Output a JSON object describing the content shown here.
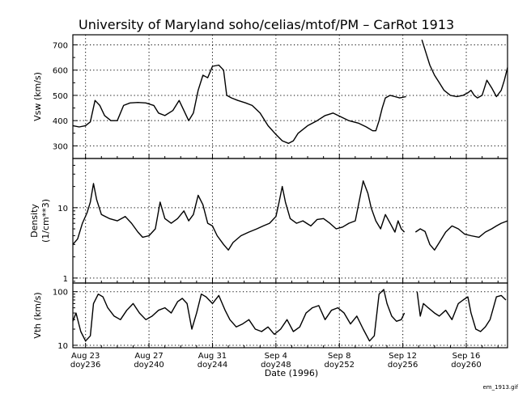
{
  "title": "University of Maryland   soho/celias/mtof/PM  –  CarRot 1913",
  "footer_label": "em_1913.gif",
  "xlabel": "Date (1996)",
  "x_ticks": [
    {
      "date": "Aug 23",
      "doy": "doy236",
      "day": 236
    },
    {
      "date": "Aug 27",
      "doy": "doy240",
      "day": 240
    },
    {
      "date": "Aug 31",
      "doy": "doy244",
      "day": 244
    },
    {
      "date": "Sep 4",
      "doy": "doy248",
      "day": 248
    },
    {
      "date": "Sep 8",
      "doy": "doy252",
      "day": 252
    },
    {
      "date": "Sep 12",
      "doy": "doy256",
      "day": 256
    },
    {
      "date": "Sep 16",
      "doy": "doy260",
      "day": 260
    }
  ],
  "chart_data": [
    {
      "type": "line",
      "ylabel": "Vsw (km/s)",
      "unit": "km/s",
      "yscale": "linear",
      "xlim": [
        235.2,
        262.6
      ],
      "ylim": [
        250,
        740
      ],
      "yticks": [
        300,
        400,
        500,
        600,
        700
      ],
      "grid": true,
      "series": [
        {
          "segments": [
            [
              [
                235.2,
                380
              ],
              [
                235.6,
                375
              ],
              [
                236.0,
                380
              ],
              [
                236.3,
                395
              ],
              [
                236.6,
                480
              ],
              [
                236.9,
                460
              ],
              [
                237.2,
                420
              ],
              [
                237.6,
                400
              ],
              [
                238.0,
                400
              ],
              [
                238.4,
                460
              ],
              [
                238.8,
                470
              ],
              [
                239.3,
                472
              ],
              [
                239.8,
                470
              ],
              [
                240.3,
                460
              ],
              [
                240.6,
                430
              ],
              [
                241.0,
                420
              ],
              [
                241.5,
                440
              ],
              [
                241.9,
                480
              ],
              [
                242.2,
                440
              ],
              [
                242.5,
                400
              ],
              [
                242.8,
                430
              ],
              [
                243.1,
                520
              ],
              [
                243.4,
                580
              ],
              [
                243.7,
                570
              ],
              [
                244.0,
                615
              ],
              [
                244.4,
                620
              ],
              [
                244.7,
                600
              ],
              [
                244.9,
                500
              ],
              [
                245.2,
                490
              ],
              [
                245.6,
                480
              ],
              [
                246.1,
                470
              ],
              [
                246.5,
                460
              ],
              [
                247.0,
                430
              ],
              [
                247.5,
                380
              ],
              [
                248.0,
                345
              ],
              [
                248.4,
                320
              ],
              [
                248.8,
                310
              ],
              [
                249.1,
                320
              ],
              [
                249.4,
                350
              ],
              [
                250.0,
                380
              ],
              [
                250.6,
                400
              ],
              [
                251.1,
                420
              ],
              [
                251.6,
                430
              ],
              [
                252.1,
                415
              ],
              [
                252.6,
                400
              ],
              [
                253.2,
                390
              ],
              [
                253.7,
                375
              ],
              [
                254.1,
                360
              ],
              [
                254.3,
                360
              ],
              [
                254.5,
                400
              ],
              [
                254.7,
                450
              ],
              [
                254.9,
                490
              ],
              [
                255.2,
                500
              ],
              [
                255.5,
                495
              ],
              [
                255.8,
                490
              ],
              [
                256.2,
                495
              ]
            ],
            [
              [
                257.2,
                720
              ],
              [
                257.4,
                680
              ],
              [
                257.7,
                620
              ],
              [
                258.0,
                580
              ],
              [
                258.3,
                550
              ],
              [
                258.6,
                520
              ],
              [
                259.0,
                500
              ],
              [
                259.4,
                495
              ],
              [
                259.8,
                500
              ],
              [
                260.1,
                510
              ],
              [
                260.3,
                520
              ],
              [
                260.5,
                500
              ],
              [
                260.7,
                490
              ],
              [
                261.0,
                500
              ],
              [
                261.3,
                560
              ],
              [
                261.6,
                530
              ],
              [
                261.9,
                495
              ],
              [
                262.2,
                520
              ],
              [
                262.4,
                560
              ],
              [
                262.6,
                610
              ]
            ]
          ]
        }
      ]
    },
    {
      "type": "line",
      "ylabel": "Density (1/cm**3)",
      "unit": "1/cm**3",
      "yscale": "log",
      "xlim": [
        235.2,
        262.6
      ],
      "ylim": [
        0.85,
        50
      ],
      "yticks": [
        1,
        10
      ],
      "grid": true,
      "series": [
        {
          "segments": [
            [
              [
                235.2,
                3.0
              ],
              [
                235.5,
                3.6
              ],
              [
                235.8,
                6.0
              ],
              [
                236.1,
                8.5
              ],
              [
                236.3,
                12.0
              ],
              [
                236.5,
                22.0
              ],
              [
                236.7,
                13.0
              ],
              [
                237.0,
                8.0
              ],
              [
                237.5,
                7.0
              ],
              [
                238.0,
                6.5
              ],
              [
                238.5,
                7.5
              ],
              [
                238.9,
                6.0
              ],
              [
                239.3,
                4.5
              ],
              [
                239.6,
                3.8
              ],
              [
                240.0,
                4.0
              ],
              [
                240.4,
                5.0
              ],
              [
                240.7,
                12.0
              ],
              [
                241.0,
                7.0
              ],
              [
                241.4,
                6.0
              ],
              [
                241.8,
                7.0
              ],
              [
                242.2,
                9.0
              ],
              [
                242.5,
                6.5
              ],
              [
                242.8,
                8.0
              ],
              [
                243.1,
                15.0
              ],
              [
                243.4,
                11.0
              ],
              [
                243.7,
                6.0
              ],
              [
                244.0,
                5.5
              ],
              [
                244.3,
                4.0
              ],
              [
                244.7,
                3.0
              ],
              [
                245.0,
                2.5
              ],
              [
                245.3,
                3.2
              ],
              [
                245.8,
                4.0
              ],
              [
                246.3,
                4.5
              ],
              [
                246.8,
                5.0
              ],
              [
                247.2,
                5.5
              ],
              [
                247.6,
                6.0
              ],
              [
                248.0,
                7.5
              ],
              [
                248.2,
                12.0
              ],
              [
                248.4,
                20.0
              ],
              [
                248.6,
                12.0
              ],
              [
                248.9,
                7.0
              ],
              [
                249.3,
                6.0
              ],
              [
                249.7,
                6.5
              ],
              [
                250.2,
                5.5
              ],
              [
                250.6,
                6.8
              ],
              [
                251.0,
                7.0
              ],
              [
                251.4,
                6.0
              ],
              [
                251.8,
                5.0
              ],
              [
                252.2,
                5.3
              ],
              [
                252.6,
                6.0
              ],
              [
                253.0,
                6.5
              ],
              [
                253.3,
                14.0
              ],
              [
                253.5,
                24.0
              ],
              [
                253.8,
                16.0
              ],
              [
                254.0,
                10.0
              ],
              [
                254.3,
                6.5
              ],
              [
                254.6,
                5.0
              ],
              [
                254.9,
                8.0
              ],
              [
                255.2,
                6.0
              ],
              [
                255.5,
                4.5
              ],
              [
                255.7,
                6.5
              ],
              [
                255.9,
                5.0
              ],
              [
                256.1,
                4.5
              ]
            ],
            [
              [
                256.8,
                4.5
              ],
              [
                257.1,
                5.0
              ],
              [
                257.4,
                4.6
              ],
              [
                257.7,
                3.0
              ],
              [
                258.0,
                2.5
              ],
              [
                258.3,
                3.2
              ],
              [
                258.7,
                4.5
              ],
              [
                259.1,
                5.5
              ],
              [
                259.5,
                5.0
              ],
              [
                259.9,
                4.2
              ],
              [
                260.3,
                4.0
              ],
              [
                260.8,
                3.8
              ],
              [
                261.2,
                4.5
              ],
              [
                261.6,
                5.0
              ],
              [
                261.9,
                5.5
              ],
              [
                262.2,
                6.0
              ],
              [
                262.6,
                6.5
              ]
            ]
          ]
        }
      ]
    },
    {
      "type": "line",
      "ylabel": "Vth (km/s)",
      "unit": "km/s",
      "yscale": "log",
      "xlim": [
        235.2,
        262.6
      ],
      "ylim": [
        9,
        145
      ],
      "yticks": [
        10,
        100
      ],
      "grid": true,
      "series": [
        {
          "segments": [
            [
              [
                235.2,
                28
              ],
              [
                235.4,
                40
              ],
              [
                235.7,
                18
              ],
              [
                236.0,
                12
              ],
              [
                236.3,
                15
              ],
              [
                236.5,
                60
              ],
              [
                236.8,
                90
              ],
              [
                237.1,
                80
              ],
              [
                237.4,
                50
              ],
              [
                237.8,
                35
              ],
              [
                238.2,
                30
              ],
              [
                238.6,
                45
              ],
              [
                239.0,
                60
              ],
              [
                239.4,
                40
              ],
              [
                239.8,
                30
              ],
              [
                240.2,
                35
              ],
              [
                240.6,
                45
              ],
              [
                241.0,
                50
              ],
              [
                241.4,
                40
              ],
              [
                241.8,
                65
              ],
              [
                242.1,
                75
              ],
              [
                242.4,
                60
              ],
              [
                242.7,
                20
              ],
              [
                243.0,
                40
              ],
              [
                243.3,
                90
              ],
              [
                243.6,
                80
              ],
              [
                244.0,
                60
              ],
              [
                244.4,
                85
              ],
              [
                244.8,
                45
              ],
              [
                245.1,
                30
              ],
              [
                245.5,
                22
              ],
              [
                245.9,
                25
              ],
              [
                246.3,
                30
              ],
              [
                246.7,
                20
              ],
              [
                247.1,
                18
              ],
              [
                247.5,
                22
              ],
              [
                247.9,
                16
              ],
              [
                248.3,
                20
              ],
              [
                248.7,
                30
              ],
              [
                249.1,
                18
              ],
              [
                249.5,
                22
              ],
              [
                249.9,
                40
              ],
              [
                250.3,
                50
              ],
              [
                250.7,
                55
              ],
              [
                251.1,
                30
              ],
              [
                251.5,
                45
              ],
              [
                251.9,
                50
              ],
              [
                252.3,
                40
              ],
              [
                252.7,
                25
              ],
              [
                253.1,
                35
              ],
              [
                253.5,
                20
              ],
              [
                253.9,
                12
              ],
              [
                254.2,
                15
              ],
              [
                254.5,
                90
              ],
              [
                254.8,
                110
              ],
              [
                255.0,
                60
              ],
              [
                255.3,
                35
              ],
              [
                255.6,
                28
              ],
              [
                255.9,
                30
              ],
              [
                256.1,
                40
              ]
            ],
            [
              [
                256.9,
                100
              ],
              [
                257.1,
                35
              ],
              [
                257.3,
                60
              ],
              [
                257.6,
                50
              ],
              [
                258.0,
                40
              ],
              [
                258.3,
                35
              ],
              [
                258.7,
                45
              ],
              [
                259.1,
                30
              ],
              [
                259.5,
                60
              ],
              [
                259.8,
                70
              ],
              [
                260.1,
                80
              ],
              [
                260.3,
                40
              ],
              [
                260.6,
                20
              ],
              [
                260.9,
                18
              ],
              [
                261.2,
                22
              ],
              [
                261.5,
                30
              ],
              [
                261.9,
                80
              ],
              [
                262.2,
                85
              ],
              [
                262.5,
                70
              ]
            ]
          ]
        }
      ]
    }
  ]
}
